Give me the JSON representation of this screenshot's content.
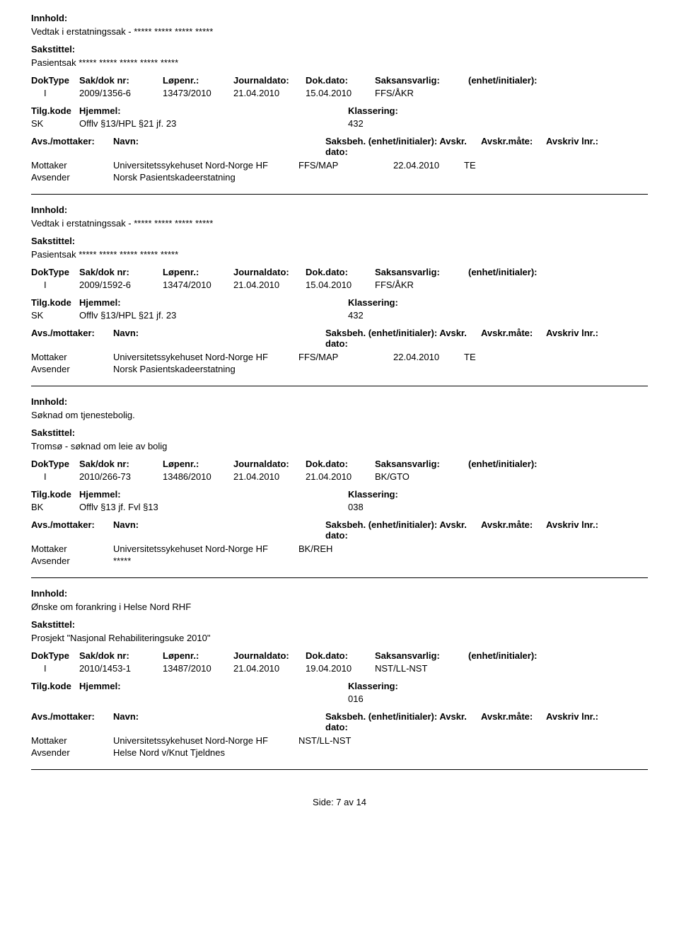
{
  "labels": {
    "innhold": "Innhold:",
    "sakstittel": "Sakstittel:",
    "doktype": "DokType",
    "saknr": "Sak/dok nr:",
    "lopenr": "Løpenr.:",
    "jdato": "Journaldato:",
    "ddato": "Dok.dato:",
    "ansvarlig": "Saksansvarlig:",
    "enhet": "(enhet/initialer):",
    "tilgkode": "Tilg.kode",
    "hjemmel": "Hjemmel:",
    "klassering": "Klassering:",
    "avsmottaker": "Avs./mottaker:",
    "navn": "Navn:",
    "saksbeh": "Saksbeh.",
    "saksbeh_enhet": "(enhet/initialer):",
    "avskr_dato": "Avskr. dato:",
    "avskr_maate": "Avskr.måte:",
    "avskriv_lnr": "Avskriv lnr.:",
    "mottaker": "Mottaker",
    "avsender": "Avsender"
  },
  "records": [
    {
      "innhold": "Vedtak i erstatningssak - ***** ***** ***** *****",
      "sakstittel": "Pasientsak ***** ***** ***** ***** *****",
      "doktype": "I",
      "saknr": "2009/1356-6",
      "lopenr": "13473/2010",
      "jdato": "21.04.2010",
      "ddato": "15.04.2010",
      "ansvarlig": "FFS/ÅKR",
      "tilgkode": "SK",
      "hjemmel": "Offlv §13/HPL §21 jf. 23",
      "klassering": "432",
      "parties": [
        {
          "role": "Mottaker",
          "name": "Universitetssykehuset Nord-Norge HF",
          "unit": "FFS/MAP",
          "date": "22.04.2010",
          "method": "TE"
        },
        {
          "role": "Avsender",
          "name": "Norsk Pasientskadeerstatning",
          "unit": "",
          "date": "",
          "method": ""
        }
      ]
    },
    {
      "innhold": "Vedtak i erstatningssak - ***** ***** ***** *****",
      "sakstittel": "Pasientsak ***** ***** ***** ***** *****",
      "doktype": "I",
      "saknr": "2009/1592-6",
      "lopenr": "13474/2010",
      "jdato": "21.04.2010",
      "ddato": "15.04.2010",
      "ansvarlig": "FFS/ÅKR",
      "tilgkode": "SK",
      "hjemmel": "Offlv §13/HPL §21 jf. 23",
      "klassering": "432",
      "parties": [
        {
          "role": "Mottaker",
          "name": "Universitetssykehuset Nord-Norge HF",
          "unit": "FFS/MAP",
          "date": "22.04.2010",
          "method": "TE"
        },
        {
          "role": "Avsender",
          "name": "Norsk Pasientskadeerstatning",
          "unit": "",
          "date": "",
          "method": ""
        }
      ]
    },
    {
      "innhold": "Søknad om tjenestebolig.",
      "sakstittel": "Tromsø - søknad om leie av bolig",
      "doktype": "I",
      "saknr": "2010/266-73",
      "lopenr": "13486/2010",
      "jdato": "21.04.2010",
      "ddato": "21.04.2010",
      "ansvarlig": "BK/GTO",
      "tilgkode": "BK",
      "hjemmel": "Offlv §13 jf. Fvl §13",
      "klassering": "038",
      "parties": [
        {
          "role": "Mottaker",
          "name": "Universitetssykehuset Nord-Norge HF",
          "unit": "BK/REH",
          "date": "",
          "method": ""
        },
        {
          "role": "Avsender",
          "name": "*****",
          "unit": "",
          "date": "",
          "method": ""
        }
      ]
    },
    {
      "innhold": "Ønske om forankring i Helse Nord RHF",
      "sakstittel": "Prosjekt \"Nasjonal Rehabiliteringsuke 2010\"",
      "doktype": "I",
      "saknr": "2010/1453-1",
      "lopenr": "13487/2010",
      "jdato": "21.04.2010",
      "ddato": "19.04.2010",
      "ansvarlig": "NST/LL-NST",
      "tilgkode": "",
      "hjemmel": "",
      "klassering": "016",
      "parties": [
        {
          "role": "Mottaker",
          "name": "Universitetssykehuset Nord-Norge HF",
          "unit": "NST/LL-NST",
          "date": "",
          "method": ""
        },
        {
          "role": "Avsender",
          "name": "Helse Nord v/Knut Tjeldnes",
          "unit": "",
          "date": "",
          "method": ""
        }
      ]
    }
  ],
  "footer": "Side:  7 av 14"
}
